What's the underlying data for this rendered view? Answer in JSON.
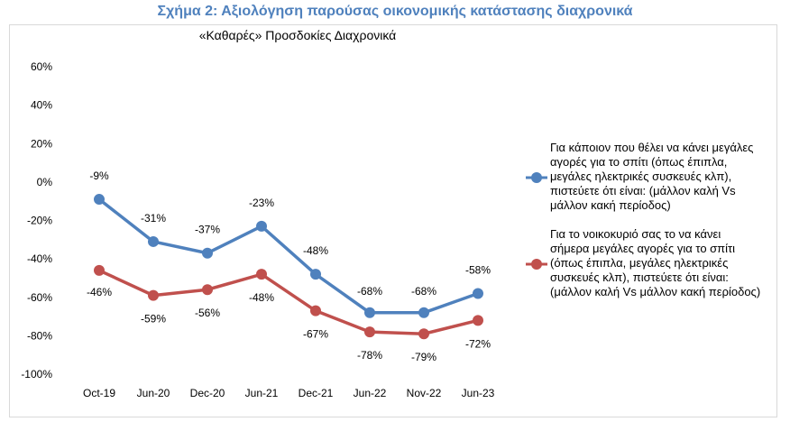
{
  "figure_title": "Σχήμα 2: Αξιολόγηση παρούσας οικονομικής κατάστασης διαχρονικά",
  "colors": {
    "series1": "#4f81bd",
    "series2": "#c0504d",
    "title": "#4f81bd"
  },
  "chart_data": {
    "type": "line",
    "title": "«Καθαρές» Προσδοκίες Διαχρονικά",
    "xlabel": "",
    "ylabel": "",
    "categories": [
      "Oct-19",
      "Jun-20",
      "Dec-20",
      "Jun-21",
      "Dec-21",
      "Jun-22",
      "Nov-22",
      "Jun-23"
    ],
    "ylim": [
      -100,
      60
    ],
    "yticks": [
      "60%",
      "40%",
      "20%",
      "0%",
      "-20%",
      "-40%",
      "-60%",
      "-80%",
      "-100%"
    ],
    "grid": false,
    "legend_position": "right",
    "series": [
      {
        "name": "Για κάποιον που θέλει να κάνει μεγάλες αγορές για το σπίτι (όπως έπιπλα, μεγάλες ηλεκτρικές συσκευές κλπ), πιστεύετε ότι είναι: (μάλλον καλή Vs μάλλον κακή περίοδος)",
        "values": [
          -9,
          -31,
          -37,
          -23,
          -48,
          -68,
          -68,
          -58
        ],
        "labels": [
          "-9%",
          "-31%",
          "-37%",
          "-23%",
          "-48%",
          "-68%",
          "-68%",
          "-58%"
        ]
      },
      {
        "name": "Για το νοικοκυριό σας το να κάνει σήμερα μεγάλες αγορές για το σπίτι (όπως έπιπλα, μεγάλες ηλεκτρικές συσκευές κλπ), πιστεύετε ότι είναι: (μάλλον καλή Vs μάλλον κακή περίοδος)",
        "values": [
          -46,
          -59,
          -56,
          -48,
          -67,
          -78,
          -79,
          -72
        ],
        "labels": [
          "-46%",
          "-59%",
          "-56%",
          "-48%",
          "-67%",
          "-78%",
          "-79%",
          "-72%"
        ]
      }
    ]
  }
}
